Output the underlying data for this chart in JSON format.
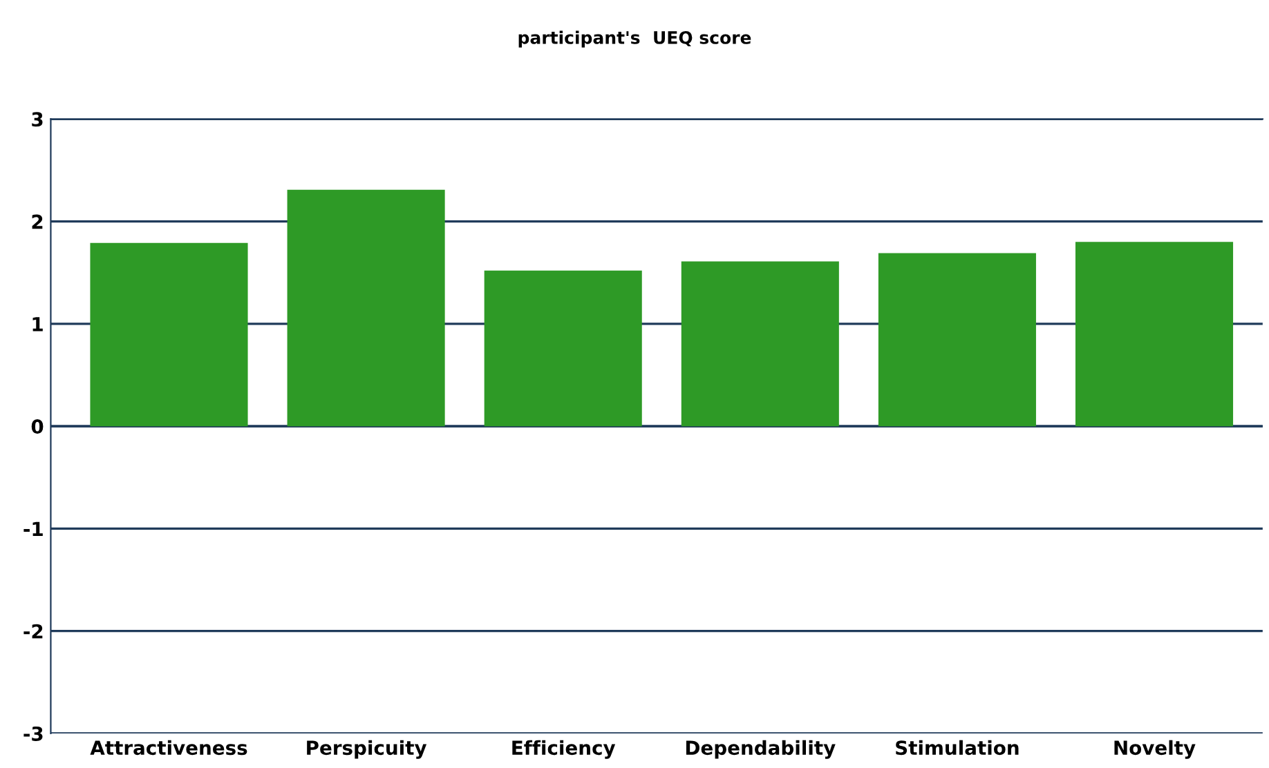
{
  "chart_data": {
    "type": "bar",
    "title": "participant's  UEQ score",
    "categories": [
      "Attractiveness",
      "Perspicuity",
      "Efficiency",
      "Dependability",
      "Stimulation",
      "Novelty"
    ],
    "values": [
      1.79,
      2.31,
      1.52,
      1.61,
      1.69,
      1.8
    ],
    "color": "#2e9a26",
    "ylim": [
      -3,
      3
    ],
    "yticks": [
      -3,
      -2,
      -1,
      0,
      1,
      2,
      3
    ],
    "grid": "y"
  }
}
